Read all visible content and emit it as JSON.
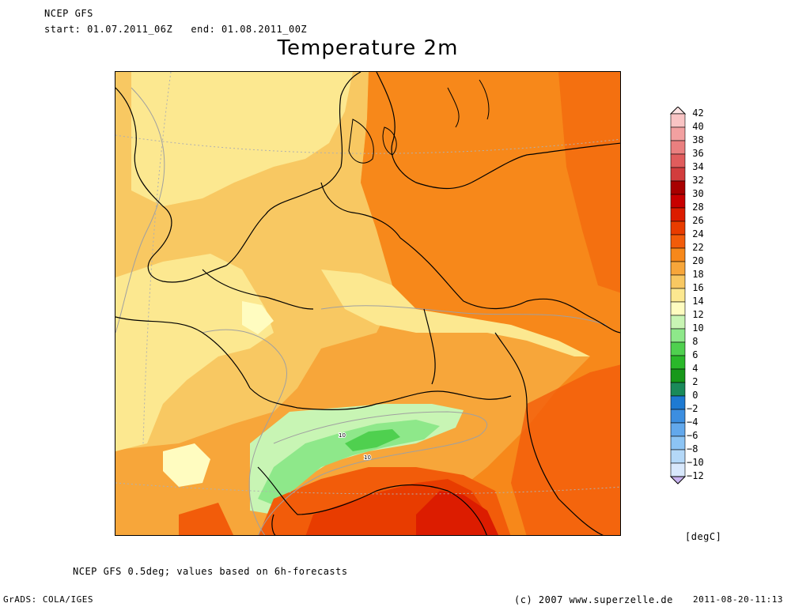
{
  "header": {
    "model": "NCEP GFS",
    "period": "start: 01.07.2011_06Z   end: 01.08.2011_00Z"
  },
  "title": "Temperature 2m",
  "legend": {
    "unit": "[degC]",
    "levels": [
      42,
      40,
      38,
      36,
      34,
      32,
      30,
      28,
      26,
      24,
      22,
      20,
      18,
      16,
      14,
      12,
      10,
      8,
      6,
      4,
      2,
      0,
      -2,
      -4,
      -6,
      -8,
      -10,
      -12
    ],
    "colors": [
      "#ffe4e4",
      "#f9c4c4",
      "#f2a0a0",
      "#ea7f7f",
      "#e05c5c",
      "#d23d3d",
      "#a80000",
      "#c80000",
      "#dc1c00",
      "#e83c00",
      "#f25c0a",
      "#f7881a",
      "#f7a63a",
      "#f8c862",
      "#fce890",
      "#fffcc0",
      "#c8f5b4",
      "#8ee88a",
      "#4fd04f",
      "#2ab82a",
      "#17981a",
      "#1a8a5a",
      "#1e7ad2",
      "#3c8ee0",
      "#62a8ec",
      "#8cc4f4",
      "#b4d8f8",
      "#d8e8fc",
      "#c8b4f0"
    ]
  },
  "map": {
    "contour_labels": [
      "10",
      "10"
    ]
  },
  "footer": {
    "source_note": "NCEP GFS 0.5deg; values based on 6h-forecasts",
    "software": "GrADS: COLA/IGES",
    "copyright": "(c) 2007 www.superzelle.de",
    "timestamp": "2011-08-20-11:13"
  }
}
